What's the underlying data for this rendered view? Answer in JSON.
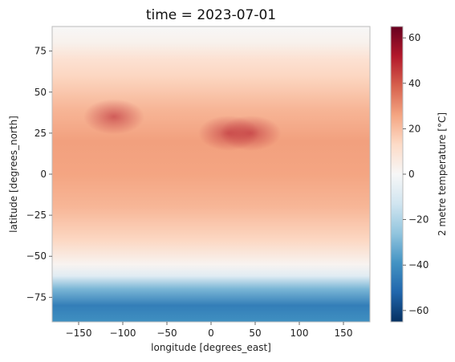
{
  "chart_data": {
    "type": "heatmap",
    "title": "time = 2023-07-01",
    "xlabel": "longitude [degrees_east]",
    "ylabel": "latitude [degrees_north]",
    "colorbar_label": "2 metre temperature [°C]",
    "xlim": [
      -180,
      180
    ],
    "ylim": [
      -90,
      90
    ],
    "x_ticks": [
      -150,
      -100,
      -50,
      0,
      50,
      100,
      150
    ],
    "y_ticks": [
      -75,
      -50,
      -25,
      0,
      25,
      50,
      75
    ],
    "x_tick_labels": [
      "−150",
      "−100",
      "−50",
      "0",
      "50",
      "100",
      "150"
    ],
    "y_tick_labels": [
      "−75",
      "−50",
      "−25",
      "0",
      "25",
      "50",
      "75"
    ],
    "colorbar_range": [
      -65,
      65
    ],
    "colorbar_ticks": [
      60,
      40,
      20,
      0,
      -20,
      -40,
      -60
    ],
    "colorbar_tick_labels": [
      "60",
      "40",
      "20",
      "0",
      "−20",
      "−40",
      "−60"
    ],
    "colormap": "RdBu_r",
    "zonal_mean_temperature_c": [
      {
        "lat": 90,
        "value": 0
      },
      {
        "lat": 80,
        "value": 3
      },
      {
        "lat": 70,
        "value": 10
      },
      {
        "lat": 60,
        "value": 14
      },
      {
        "lat": 40,
        "value": 22
      },
      {
        "lat": 20,
        "value": 27
      },
      {
        "lat": 0,
        "value": 26
      },
      {
        "lat": -20,
        "value": 22
      },
      {
        "lat": -40,
        "value": 14
      },
      {
        "lat": -55,
        "value": 2
      },
      {
        "lat": -62,
        "value": -8
      },
      {
        "lat": -70,
        "value": -30
      },
      {
        "lat": -80,
        "value": -45
      },
      {
        "lat": -90,
        "value": -40
      }
    ],
    "hotspots": [
      {
        "lon": 20,
        "lat": 25,
        "value": 40
      },
      {
        "lon": 45,
        "lat": 25,
        "value": 38
      },
      {
        "lon": -110,
        "lat": 35,
        "value": 32
      }
    ]
  }
}
